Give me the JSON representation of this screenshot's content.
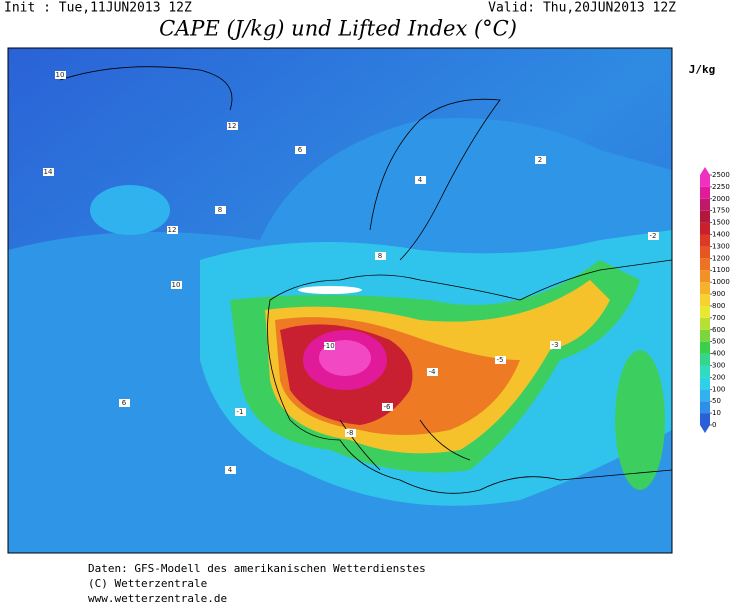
{
  "header": {
    "init": "Init : Tue,11JUN2013 12Z",
    "valid": "Valid: Thu,20JUN2013 12Z",
    "title": "CAPE (J/kg) und Lifted Index (°C)"
  },
  "colorbar": {
    "unit": "J/kg",
    "levels": [
      0,
      10,
      50,
      100,
      200,
      300,
      400,
      500,
      600,
      700,
      800,
      900,
      1000,
      1100,
      1200,
      1300,
      1400,
      1500,
      1750,
      2000,
      2250,
      2500
    ],
    "colors": [
      "#2a5fd8",
      "#2f8fe8",
      "#30b2ee",
      "#2fd0e8",
      "#2fdcc0",
      "#33d68a",
      "#3ccf4e",
      "#7ad63a",
      "#b8e033",
      "#e8e833",
      "#f5d22e",
      "#f5b22a",
      "#f29226",
      "#ee7224",
      "#e85522",
      "#dc3a26",
      "#c8202c",
      "#b0183c",
      "#c0186a",
      "#e01a98",
      "#f030c0"
    ]
  },
  "map": {
    "contour_labels": [
      "10",
      "12",
      "14",
      "8",
      "6",
      "4",
      "2",
      "-1",
      "-2",
      "-3",
      "-4",
      "-5",
      "-6",
      "-8",
      "-10",
      "12",
      "10",
      "8",
      "6",
      "4"
    ]
  },
  "footer": {
    "lines": [
      "Daten: GFS-Modell des amerikanischen Wetterdienstes",
      "(C) Wetterzentrale",
      "www.wetterzentrale.de"
    ]
  }
}
